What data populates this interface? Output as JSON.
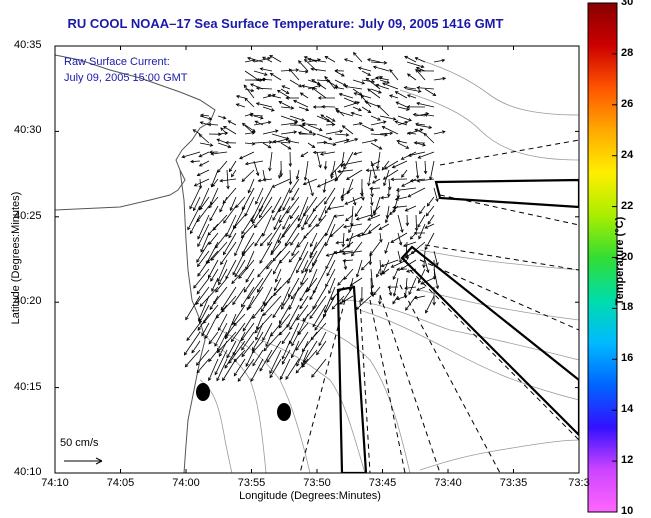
{
  "title": "RU COOL  NOAA–17  Sea Surface Temperature:  July 09, 2005 1416 GMT",
  "inset": {
    "line1": "Raw Surface Current:",
    "line2": "July 09, 2005 15:00 GMT"
  },
  "axes": {
    "xlabel": "Longitude (Degrees:Minutes)",
    "ylabel": "Latitude (Degrees:Minutes)",
    "xticks": [
      "74:10",
      "74:05",
      "74:00",
      "73:55",
      "73:50",
      "73:45",
      "73:40",
      "73:35",
      "73:3"
    ],
    "yticks": [
      "40:35",
      "40:30",
      "40:25",
      "40:20",
      "40:15",
      "40:10"
    ]
  },
  "scale": {
    "label": "50 cm/s"
  },
  "colorbar": {
    "label": "Temperature (°C)",
    "ticks": [
      "30",
      "28",
      "26",
      "24",
      "22",
      "20",
      "18",
      "16",
      "14",
      "12",
      "10"
    ],
    "min": 10,
    "max": 30,
    "colors": [
      "#ff66ff",
      "#cc44ff",
      "#3311ff",
      "#0066ff",
      "#00bbff",
      "#00ddaa",
      "#33dd33",
      "#aaee00",
      "#ffee00",
      "#ffaa00",
      "#ff5500",
      "#cc0000",
      "#880000"
    ]
  },
  "map": {
    "land_color": "#ffffff",
    "contour_color": "#999999",
    "frame_color": "#000000",
    "vector_color": "#000000"
  }
}
